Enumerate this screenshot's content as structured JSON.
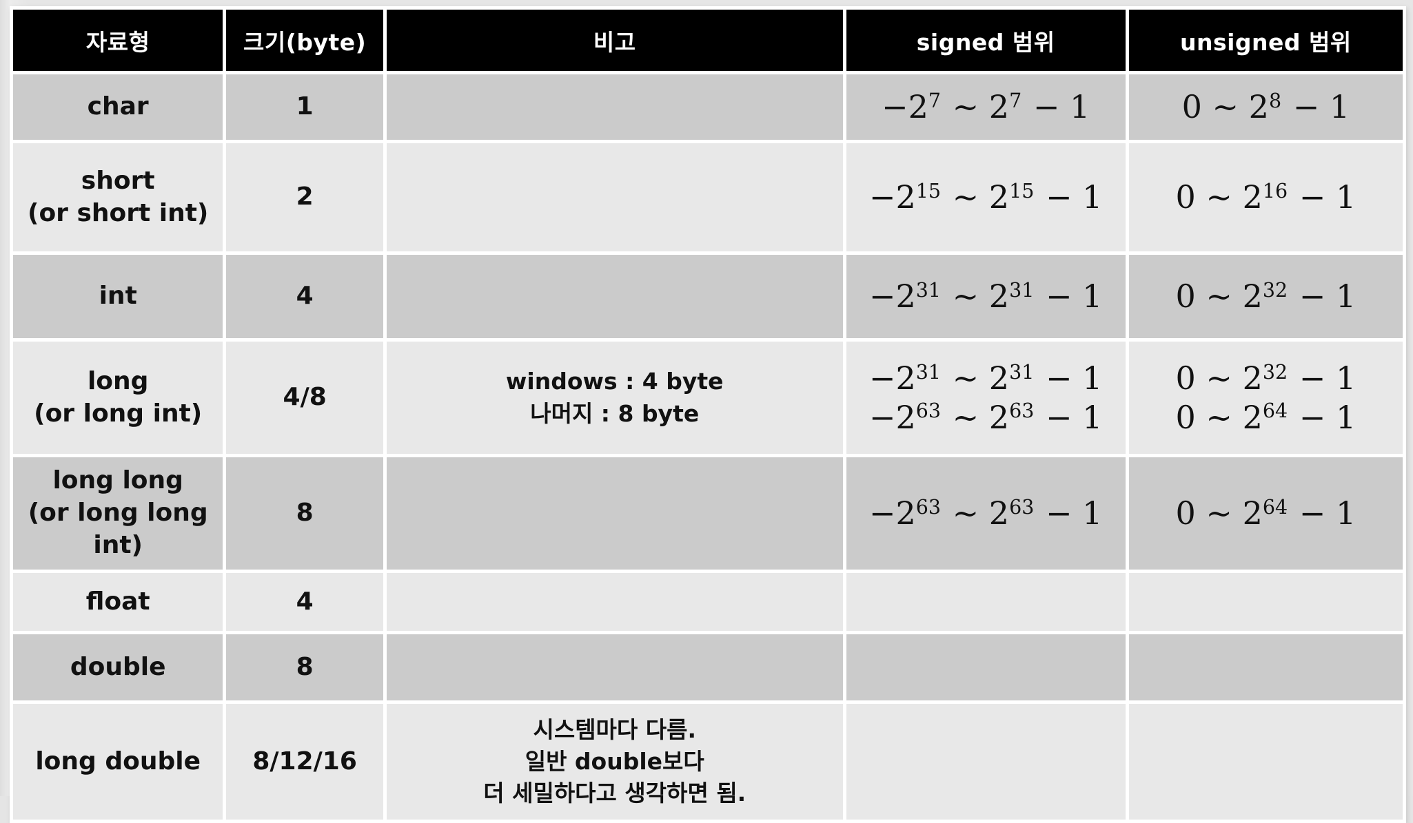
{
  "colors": {
    "page_bg": "#e5e5e5",
    "header_bg": "#000000",
    "header_text": "#ffffff",
    "row_dark": "#cbcbcb",
    "row_light": "#e8e8e8",
    "cell_border": "#ffffff",
    "body_text": "#111111"
  },
  "table": {
    "columns": [
      {
        "key": "type",
        "name": "col-header-type",
        "label": "자료형"
      },
      {
        "key": "size",
        "name": "col-header-size",
        "label": "크기(byte)"
      },
      {
        "key": "note",
        "name": "col-header-note",
        "label": "비고"
      },
      {
        "key": "signed",
        "name": "col-header-signed-range",
        "label": "signed 범위"
      },
      {
        "key": "unsigned",
        "name": "col-header-unsigned-range",
        "label": "unsigned 범위"
      }
    ],
    "rows": [
      {
        "shade": "dark",
        "type": [
          "char"
        ],
        "size": "1",
        "note": [],
        "signed": [
          "−2^7 ~ 2^7 − 1"
        ],
        "unsigned": [
          "0 ~ 2^8 − 1"
        ]
      },
      {
        "shade": "light",
        "type": [
          "short",
          "(or short int)"
        ],
        "size": "2",
        "note": [],
        "signed": [
          "−2^15 ~ 2^15 − 1"
        ],
        "unsigned": [
          "0 ~ 2^16 − 1"
        ]
      },
      {
        "shade": "dark",
        "type": [
          "int"
        ],
        "size": "4",
        "note": [],
        "signed": [
          "−2^31 ~ 2^31 − 1"
        ],
        "unsigned": [
          "0 ~ 2^32 − 1"
        ]
      },
      {
        "shade": "light",
        "type": [
          "long",
          "(or long int)"
        ],
        "size": "4/8",
        "note": [
          "windows : 4 byte",
          "나머지 : 8 byte"
        ],
        "signed": [
          "−2^31 ~ 2^31 − 1",
          "−2^63 ~ 2^63 − 1"
        ],
        "unsigned": [
          "0 ~ 2^32 − 1",
          "0 ~ 2^64 − 1"
        ]
      },
      {
        "shade": "dark",
        "type": [
          "long long",
          "(or long long int)"
        ],
        "size": "8",
        "note": [],
        "signed": [
          "−2^63 ~ 2^63 − 1"
        ],
        "unsigned": [
          "0 ~ 2^64 − 1"
        ]
      },
      {
        "shade": "light",
        "type": [
          "float"
        ],
        "size": "4",
        "note": [],
        "signed": [],
        "unsigned": []
      },
      {
        "shade": "dark",
        "type": [
          "double"
        ],
        "size": "8",
        "note": [],
        "signed": [],
        "unsigned": []
      },
      {
        "shade": "light",
        "type": [
          "long double"
        ],
        "size": "8/12/16",
        "note": [
          "시스템마다 다름.",
          "일반 double보다",
          "더 세밀하다고 생각하면 됨."
        ],
        "signed": [],
        "unsigned": []
      }
    ]
  }
}
